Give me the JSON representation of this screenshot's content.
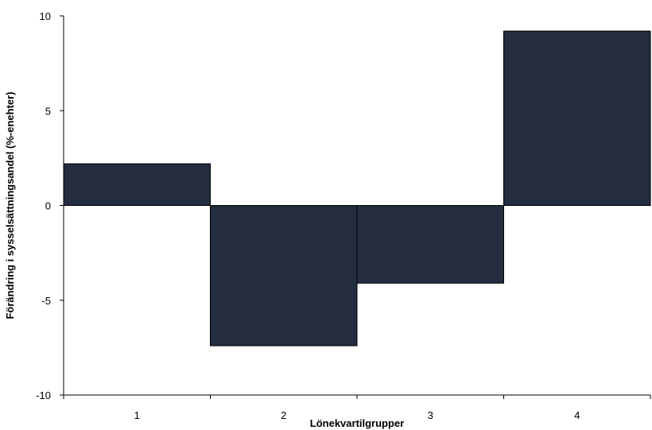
{
  "chart_data": {
    "type": "bar",
    "categories": [
      "1",
      "2",
      "3",
      "4"
    ],
    "values": [
      2.2,
      -7.4,
      -4.1,
      9.2
    ],
    "title": "",
    "xlabel": "Lönekvartilgrupper",
    "ylabel": "Förändring i sysselsättningsandel (%-enehter)",
    "ylim": [
      -10,
      10
    ],
    "yticks": [
      10,
      5,
      0,
      -5,
      -10
    ],
    "ytick_labels": [
      "10",
      "5",
      "0",
      "-5",
      "-10"
    ],
    "grid": false,
    "legend": "none",
    "bar_color": "#232d3f"
  }
}
